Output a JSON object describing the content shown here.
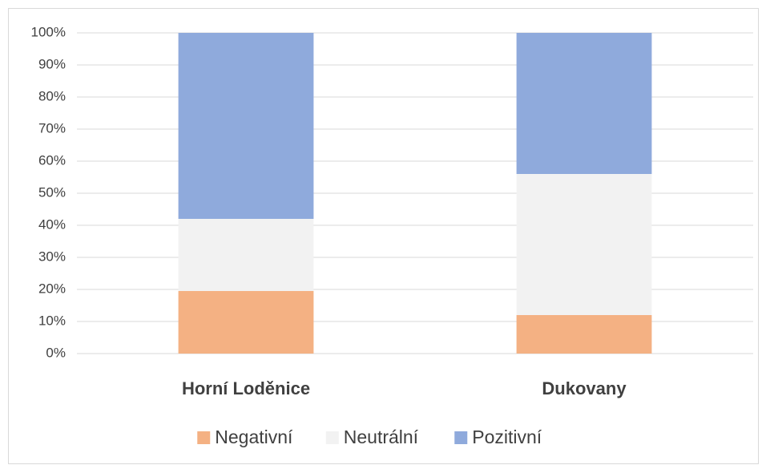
{
  "chart_data": {
    "type": "bar",
    "stacked": true,
    "categories": [
      "Horní Loděnice",
      "Dukovany"
    ],
    "series": [
      {
        "name": "Negativní",
        "color": "#f4b183",
        "values": [
          19.5,
          12
        ]
      },
      {
        "name": "Neutrální",
        "color": "#f2f2f2",
        "values": [
          22.5,
          44
        ]
      },
      {
        "name": "Pozitivní",
        "color": "#8faadc",
        "values": [
          58,
          44
        ]
      }
    ],
    "ylim": [
      0,
      100
    ],
    "yticks": [
      {
        "value": 0,
        "label": "0%"
      },
      {
        "value": 10,
        "label": "10%"
      },
      {
        "value": 20,
        "label": "20%"
      },
      {
        "value": 30,
        "label": "30%"
      },
      {
        "value": 40,
        "label": "40%"
      },
      {
        "value": 50,
        "label": "50%"
      },
      {
        "value": 60,
        "label": "60%"
      },
      {
        "value": 70,
        "label": "70%"
      },
      {
        "value": 80,
        "label": "80%"
      },
      {
        "value": 90,
        "label": "90%"
      },
      {
        "value": 100,
        "label": "100%"
      }
    ],
    "grid": true,
    "legend": "bottom"
  }
}
